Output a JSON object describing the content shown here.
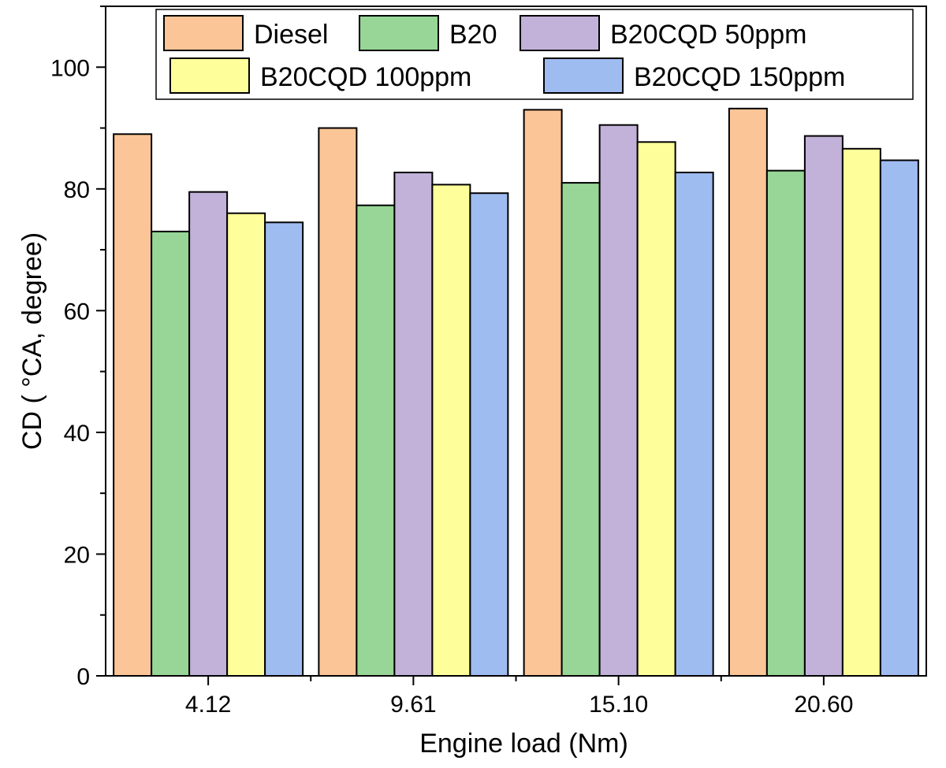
{
  "chart_data": {
    "type": "bar",
    "xlabel": "Engine load (Nm)",
    "ylabel": "CD ( °CA, degree)",
    "categories": [
      "4.12",
      "9.61",
      "15.10",
      "20.60"
    ],
    "ylim": [
      0,
      110
    ],
    "yticks": [
      0,
      20,
      40,
      60,
      80,
      100
    ],
    "grid": false,
    "legend_position": "top",
    "series": [
      {
        "name": "Diesel",
        "color": "#fbc597",
        "values": [
          89.0,
          90.0,
          93.0,
          93.2
        ]
      },
      {
        "name": "B20",
        "color": "#97d697",
        "values": [
          73.0,
          77.3,
          81.0,
          83.0
        ]
      },
      {
        "name": "B20CQD 50ppm",
        "color": "#c2b2d9",
        "values": [
          79.5,
          82.7,
          90.5,
          88.7
        ]
      },
      {
        "name": "B20CQD 100ppm",
        "color": "#fefe9b",
        "values": [
          76.0,
          80.7,
          87.7,
          86.6
        ]
      },
      {
        "name": "B20CQD 150ppm",
        "color": "#9fbcf1",
        "values": [
          74.5,
          79.3,
          82.7,
          84.7
        ]
      }
    ]
  }
}
